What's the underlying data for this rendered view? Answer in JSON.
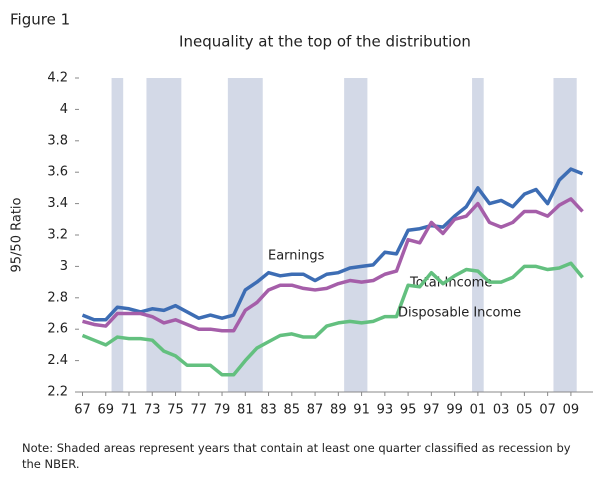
{
  "chart_data": {
    "type": "line",
    "figure_label": "Figure 1",
    "title": "Inequality at the top of the distribution",
    "y_label": "95/50 Ratio",
    "note": "Note: Shaded areas represent years that contain at least one quarter classified as recession by the NBER.",
    "x": [
      1967,
      1968,
      1969,
      1970,
      1971,
      1972,
      1973,
      1974,
      1975,
      1976,
      1977,
      1978,
      1979,
      1980,
      1981,
      1982,
      1983,
      1984,
      1985,
      1986,
      1987,
      1988,
      1989,
      1990,
      1991,
      1992,
      1993,
      1994,
      1995,
      1996,
      1997,
      1998,
      1999,
      2000,
      2001,
      2002,
      2003,
      2004,
      2005,
      2006,
      2007,
      2008,
      2009,
      2010
    ],
    "series": [
      {
        "name": "Earnings",
        "color": "#3d6db4",
        "values": [
          2.69,
          2.66,
          2.66,
          2.74,
          2.73,
          2.71,
          2.73,
          2.72,
          2.75,
          2.71,
          2.67,
          2.69,
          2.67,
          2.69,
          2.85,
          2.9,
          2.96,
          2.94,
          2.95,
          2.95,
          2.91,
          2.95,
          2.96,
          2.99,
          3.0,
          3.01,
          3.09,
          3.08,
          3.23,
          3.24,
          3.26,
          3.25,
          3.32,
          3.38,
          3.5,
          3.4,
          3.42,
          3.38,
          3.46,
          3.49,
          3.4,
          3.55,
          3.62,
          3.59
        ]
      },
      {
        "name": "Total Income",
        "color": "#a55ea9",
        "values": [
          2.65,
          2.63,
          2.62,
          2.7,
          2.7,
          2.7,
          2.68,
          2.64,
          2.66,
          2.63,
          2.6,
          2.6,
          2.59,
          2.59,
          2.72,
          2.77,
          2.85,
          2.88,
          2.88,
          2.86,
          2.85,
          2.86,
          2.89,
          2.91,
          2.9,
          2.91,
          2.95,
          2.97,
          3.17,
          3.15,
          3.28,
          3.21,
          3.3,
          3.32,
          3.4,
          3.28,
          3.25,
          3.28,
          3.35,
          3.35,
          3.32,
          3.39,
          3.43,
          3.35
        ]
      },
      {
        "name": "Disposable Income",
        "color": "#63c07f",
        "values": [
          2.56,
          2.53,
          2.5,
          2.55,
          2.54,
          2.54,
          2.53,
          2.46,
          2.43,
          2.37,
          2.37,
          2.37,
          2.31,
          2.31,
          2.4,
          2.48,
          2.52,
          2.56,
          2.57,
          2.55,
          2.55,
          2.62,
          2.64,
          2.65,
          2.64,
          2.65,
          2.68,
          2.68,
          2.88,
          2.87,
          2.96,
          2.89,
          2.94,
          2.98,
          2.97,
          2.9,
          2.9,
          2.93,
          3.0,
          3.0,
          2.98,
          2.99,
          3.02,
          2.93
        ]
      }
    ],
    "recessions": [
      [
        1970,
        1970
      ],
      [
        1973,
        1975
      ],
      [
        1980,
        1982
      ],
      [
        1990,
        1991
      ],
      [
        2001,
        2001
      ],
      [
        2008,
        2009
      ]
    ],
    "recession_color": "#d3d9e7",
    "xlim": [
      1966.7,
      2010.9
    ],
    "xticks": [
      {
        "value": 1967,
        "label": "67"
      },
      {
        "value": 1969,
        "label": "69"
      },
      {
        "value": 1971,
        "label": "71"
      },
      {
        "value": 1973,
        "label": "73"
      },
      {
        "value": 1975,
        "label": "75"
      },
      {
        "value": 1977,
        "label": "77"
      },
      {
        "value": 1979,
        "label": "79"
      },
      {
        "value": 1981,
        "label": "81"
      },
      {
        "value": 1983,
        "label": "83"
      },
      {
        "value": 1985,
        "label": "85"
      },
      {
        "value": 1987,
        "label": "87"
      },
      {
        "value": 1989,
        "label": "89"
      },
      {
        "value": 1991,
        "label": "91"
      },
      {
        "value": 1993,
        "label": "93"
      },
      {
        "value": 1995,
        "label": "95"
      },
      {
        "value": 1997,
        "label": "97"
      },
      {
        "value": 1999,
        "label": "99"
      },
      {
        "value": 2001,
        "label": "01"
      },
      {
        "value": 2003,
        "label": "03"
      },
      {
        "value": 2005,
        "label": "05"
      },
      {
        "value": 2007,
        "label": "07"
      },
      {
        "value": 2009,
        "label": "09"
      }
    ],
    "ylim": [
      2.2,
      4.2
    ],
    "yticks": [
      2.2,
      2.4,
      2.6,
      2.8,
      3,
      3.2,
      3.4,
      3.6,
      3.8,
      4,
      4.2
    ]
  }
}
